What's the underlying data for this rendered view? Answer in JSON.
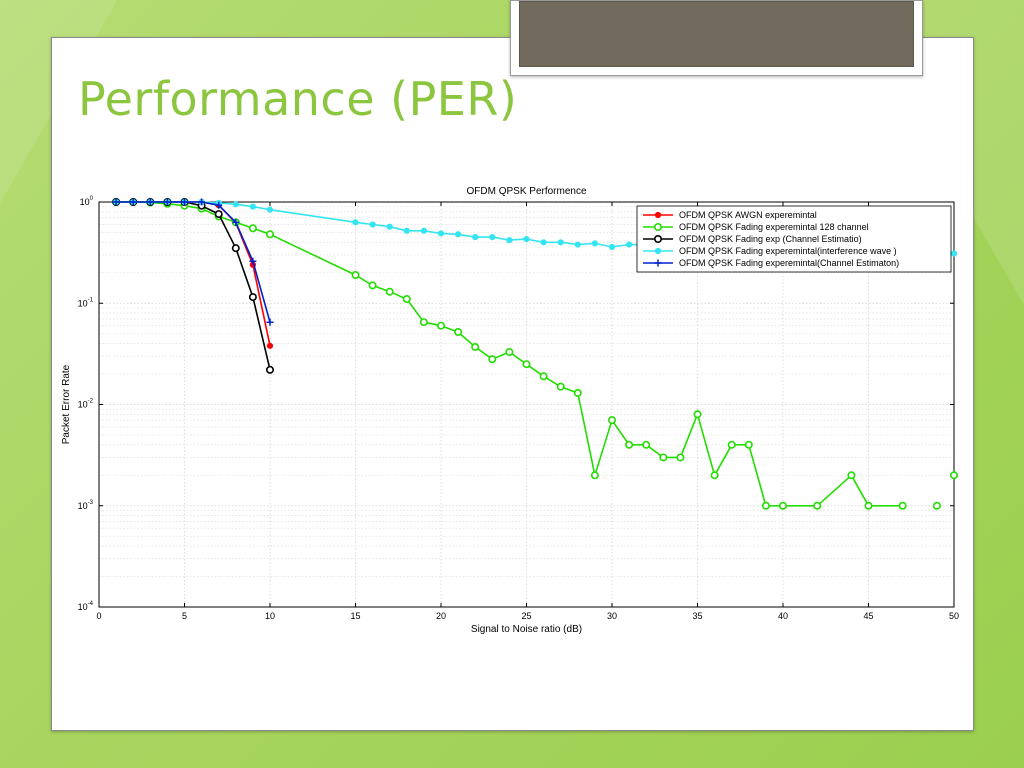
{
  "slide": {
    "title": "Performance (PER)"
  },
  "chart_data": {
    "type": "line",
    "title": "OFDM QPSK Performence",
    "xlabel": "Signal to Noise ratio (dB)",
    "ylabel": "Packet Error Rate",
    "xlim": [
      0,
      50
    ],
    "ylim": [
      0.0001,
      1
    ],
    "yscale": "log",
    "grid": true,
    "legend_position": "top-right",
    "x_ticks": [
      0,
      5,
      10,
      15,
      20,
      25,
      30,
      35,
      40,
      45,
      50
    ],
    "y_ticks": [
      {
        "value": 1,
        "base": "10",
        "exp": "0"
      },
      {
        "value": 0.1,
        "base": "10",
        "exp": "-1"
      },
      {
        "value": 0.01,
        "base": "10",
        "exp": "-2"
      },
      {
        "value": 0.001,
        "base": "10",
        "exp": "-3"
      },
      {
        "value": 0.0001,
        "base": "10",
        "exp": "-4"
      }
    ],
    "series": [
      {
        "name": "OFDM QPSK AWGN experemintal",
        "color": "#ff0000",
        "marker": "dot",
        "x": [
          1,
          2,
          3,
          4,
          5,
          6,
          7,
          8,
          9,
          10
        ],
        "y": [
          1,
          1,
          1,
          1,
          1,
          1,
          0.93,
          0.62,
          0.24,
          0.038
        ]
      },
      {
        "name": "OFDM QPSK Fading experemintal 128 channel",
        "color": "#22dd00",
        "marker": "circle",
        "x": [
          1,
          2,
          3,
          4,
          5,
          6,
          7,
          8,
          9,
          10,
          15,
          16,
          17,
          18,
          19,
          20,
          21,
          22,
          23,
          24,
          25,
          26,
          27,
          28,
          29,
          30,
          31,
          32,
          33,
          34,
          35,
          36,
          37,
          38,
          39,
          40,
          42,
          44,
          45,
          47,
          49,
          50
        ],
        "y": [
          1,
          1,
          0.99,
          0.96,
          0.92,
          0.86,
          0.72,
          0.63,
          0.55,
          0.48,
          0.19,
          0.15,
          0.13,
          0.11,
          0.065,
          0.06,
          0.052,
          0.037,
          0.028,
          0.033,
          0.025,
          0.019,
          0.015,
          0.013,
          0.002,
          0.007,
          0.004,
          0.004,
          0.003,
          0.003,
          0.008,
          0.002,
          0.004,
          0.004,
          0.001,
          0.001,
          0.001,
          0.002,
          0.001,
          0.001,
          0.001,
          0.002
        ],
        "segments": [
          [
            0,
            39
          ],
          [
            41,
            42
          ],
          [
            43,
            44
          ],
          [
            46,
            47
          ]
        ]
      },
      {
        "name": "OFDM QPSK Fading exp (Channel Estimatio)",
        "color": "#000000",
        "marker": "circle",
        "x": [
          1,
          2,
          3,
          4,
          5,
          6,
          7,
          8,
          9,
          10
        ],
        "y": [
          1,
          1,
          1,
          1,
          1,
          0.92,
          0.76,
          0.35,
          0.115,
          0.022
        ]
      },
      {
        "name": "OFDM QPSK Fading experemintal(interference wave )",
        "color": "#33e5f0",
        "marker": "dot",
        "x": [
          1,
          2,
          3,
          4,
          5,
          6,
          7,
          8,
          9,
          10,
          15,
          16,
          17,
          18,
          19,
          20,
          21,
          22,
          23,
          24,
          25,
          26,
          27,
          28,
          29,
          30,
          31,
          50
        ],
        "y": [
          1,
          1,
          1,
          1,
          1,
          1,
          0.98,
          0.95,
          0.9,
          0.84,
          0.63,
          0.6,
          0.57,
          0.52,
          0.52,
          0.49,
          0.48,
          0.45,
          0.45,
          0.42,
          0.43,
          0.4,
          0.4,
          0.38,
          0.39,
          0.36,
          0.38,
          0.31
        ]
      },
      {
        "name": "OFDM QPSK Fading experemintal(Channel Estimaton)",
        "color": "#0022cc",
        "marker": "plus",
        "x": [
          1,
          2,
          3,
          4,
          5,
          6,
          7,
          8,
          9,
          10
        ],
        "y": [
          1,
          1,
          1,
          1,
          1,
          1,
          0.93,
          0.63,
          0.26,
          0.065
        ]
      }
    ]
  }
}
